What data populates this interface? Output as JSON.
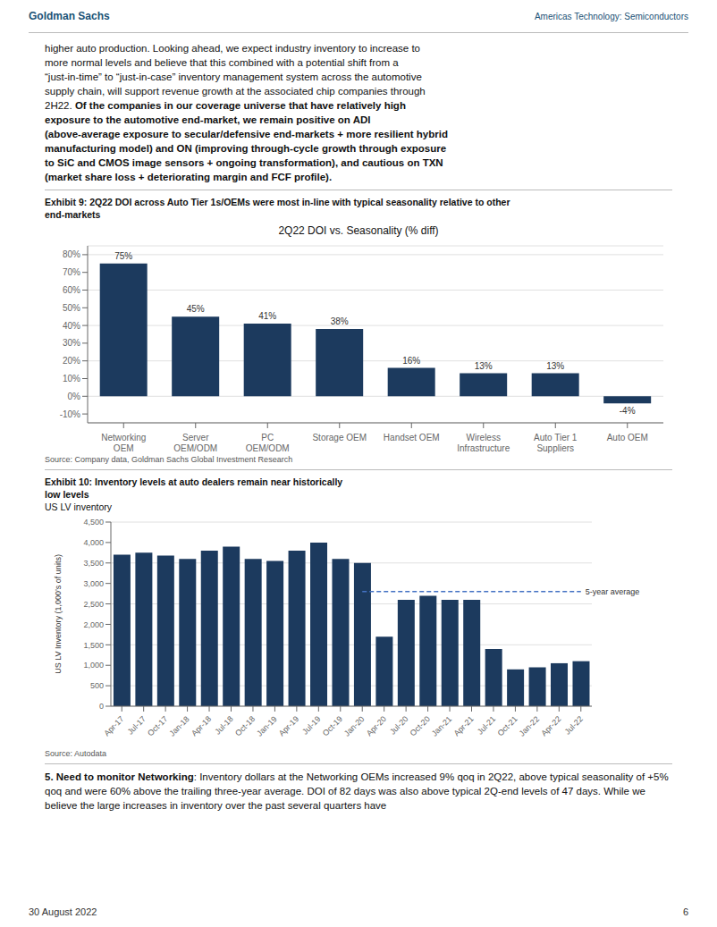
{
  "header": [
    "Goldman Sachs",
    "Americas Technology: Semiconductors"
  ],
  "header_color": "#1a5276",
  "body": [
    "higher auto production. Looking ahead, we expect industry inventory to increase to",
    "more normal levels and believe that this combined with a potential shift from a",
    "“just-in-time” to “just-in-case” inventory management system across the automotive",
    "supply chain, will support revenue growth at the associated chip companies through",
    [
      "2H22. ",
      "Of the companies in our coverage universe that have relatively high"
    ],
    "exposure to the automotive end-market, we remain positive on ADI",
    "(above-average exposure to secular/defensive end-markets + more resilient hybrid",
    "manufacturing model) and ON (improving through-cycle growth through exposure",
    "to SiC and CMOS image sensors + ongoing transformation), and cautious on TXN",
    "(market share loss + deteriorating margin and FCF profile)."
  ],
  "bottom": [
    "5. Need to monitor Networking",
    ": Inventory dollars at the Networking OEMs increased 9% qoq in 2Q22, above typical seasonality of +5% qoq and were 60% above the trailing three-year average. DOI of 82 days was also above typical 2Q-end levels of 47 days. While we believe the large increases in inventory over the past several quarters have"
  ],
  "footer": [
    "30 August 2022",
    "6"
  ],
  "chart_data": [
    {
      "type": "bar",
      "exhibit": [
        "Exhibit 9: 2Q22 DOI across Auto Tier 1s/OEMs were most in-line with typical seasonality relative to other",
        "end-markets"
      ],
      "title": "2Q22 DOI vs. Seasonality (% diff)",
      "categories": [
        "Networking\nOEM",
        "Server\nOEM/ODM",
        "PC\nOEM/ODM",
        "Storage OEM",
        "Handset OEM",
        "Wireless\nInfrastructure",
        "Auto Tier 1\nSuppliers",
        "Auto OEM"
      ],
      "values": [
        75,
        45,
        41,
        38,
        16,
        13,
        13,
        -4
      ],
      "value_labels": [
        "75%",
        "45%",
        "41%",
        "38%",
        "16%",
        "13%",
        "13%",
        "-4%"
      ],
      "data_labels": true,
      "color": "#1c3a5e",
      "ylim": [
        -15,
        85
      ],
      "yticks": [
        {
          "value": -10,
          "label": "-10%"
        },
        {
          "value": 0,
          "label": "0%"
        },
        {
          "value": 10,
          "label": "10%"
        },
        {
          "value": 20,
          "label": "20%"
        },
        {
          "value": 30,
          "label": "30%"
        },
        {
          "value": 40,
          "label": "40%"
        },
        {
          "value": 50,
          "label": "50%"
        },
        {
          "value": 60,
          "label": "60%"
        },
        {
          "value": 70,
          "label": "70%"
        },
        {
          "value": 80,
          "label": "80%"
        }
      ],
      "grid": true,
      "source": "Source: Company data, Goldman Sachs Global Investment Research"
    },
    {
      "type": "bar",
      "exhibit": [
        "Exhibit 10: Inventory levels at auto dealers remain near historically",
        "low levels"
      ],
      "subtitle": "US LV inventory",
      "ylabel": "US LV Inventory (1,000’s of units)",
      "categories": [
        "Apr-17",
        "Jul-17",
        "Oct-17",
        "Jan-18",
        "Apr-18",
        "Jul-18",
        "Oct-18",
        "Jan-19",
        "Apr-19",
        "Jul-19",
        "Oct-19",
        "Jan-20",
        "Apr-20",
        "Jul-20",
        "Oct-20",
        "Jan-21",
        "Apr-21",
        "Jul-21",
        "Oct-21",
        "Jan-22",
        "Apr-22",
        "Jul-22"
      ],
      "values": [
        3700,
        3750,
        3680,
        3600,
        3800,
        3900,
        3600,
        3550,
        3800,
        4000,
        3600,
        3500,
        1700,
        2600,
        2700,
        2600,
        2600,
        1400,
        900,
        950,
        1050,
        1100
      ],
      "color": "#1c3a5e",
      "ylim": [
        0,
        4500
      ],
      "yticks": [
        0,
        500,
        {
          "value": 1000,
          "label": "1,000"
        },
        {
          "value": 1500,
          "label": "1,500"
        },
        {
          "value": 2000,
          "label": "2,000"
        },
        {
          "value": 2500,
          "label": "2,500"
        },
        {
          "value": 3000,
          "label": "3,000"
        },
        {
          "value": 3500,
          "label": "3,500"
        },
        {
          "value": 4000,
          "label": "4,000"
        },
        {
          "value": 4500,
          "label": "4,500"
        }
      ],
      "average": {
        "value": 2800,
        "label": "5-year average",
        "color": "#4472c4"
      },
      "grid": true,
      "source": "Source: Autodata"
    }
  ]
}
